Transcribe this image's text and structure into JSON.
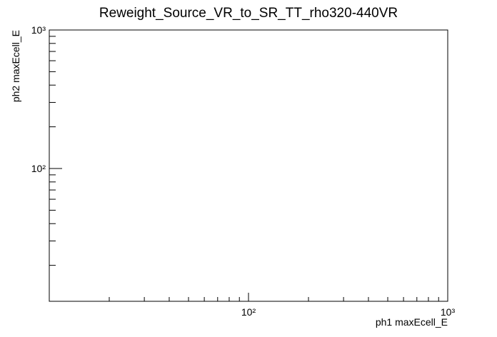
{
  "chart_data": {
    "type": "scatter",
    "title": "Reweight_Source_VR_to_SR_TT_rho320-440VR",
    "x_label": "ph1 maxEcell_E",
    "y_label": "ph2 maxEcell_E",
    "x": [],
    "values": [],
    "xscale": "log",
    "yscale": "log",
    "xlim": [
      10,
      1000
    ],
    "ylim": [
      11,
      1000
    ],
    "xticks": [
      {
        "value": 100,
        "label": "10²"
      },
      {
        "value": 1000,
        "label": "10³"
      }
    ],
    "yticks": [
      {
        "value": 100,
        "label": "10²"
      },
      {
        "value": 1000,
        "label": "10³"
      }
    ],
    "xminor_ticks": [
      20,
      30,
      40,
      50,
      60,
      70,
      80,
      90,
      200,
      300,
      400,
      500,
      600,
      700,
      800,
      900
    ],
    "yminor_ticks": [
      20,
      30,
      40,
      50,
      60,
      70,
      80,
      90,
      200,
      300,
      400,
      500,
      600,
      700,
      800,
      900
    ]
  }
}
